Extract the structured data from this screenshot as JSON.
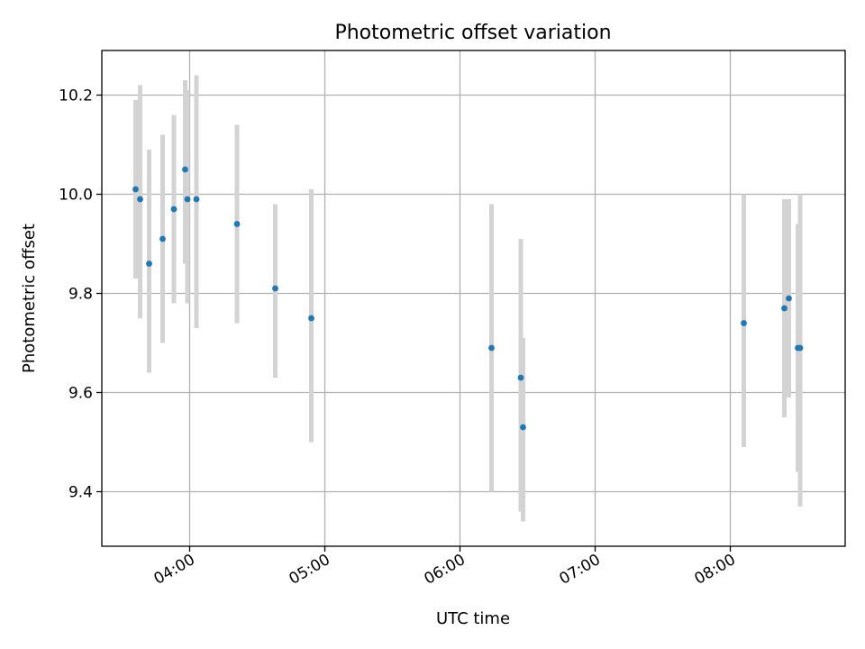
{
  "chart_data": {
    "type": "scatter",
    "title": "Photometric offset variation",
    "xlabel": "UTC time",
    "ylabel": "Photometric offset",
    "x_unit": "UTC time (hh:mm)",
    "xlim": [
      "03:21",
      "08:51"
    ],
    "ylim": [
      9.29,
      10.29
    ],
    "grid": true,
    "x_ticks": [
      "04:00",
      "05:00",
      "06:00",
      "07:00",
      "08:00"
    ],
    "y_ticks": [
      "9.4",
      "9.6",
      "9.8",
      "10.0",
      "10.2"
    ],
    "marker_color": "#1f77b4",
    "errorbar_color": "#d3d3d3",
    "series": [
      {
        "points": [
          {
            "x": "03:36",
            "y": 10.01,
            "ylow": 9.83,
            "yhigh": 10.19
          },
          {
            "x": "03:38",
            "y": 9.99,
            "ylow": 9.75,
            "yhigh": 10.22
          },
          {
            "x": "03:42",
            "y": 9.86,
            "ylow": 9.64,
            "yhigh": 10.09
          },
          {
            "x": "03:48",
            "y": 9.91,
            "ylow": 9.7,
            "yhigh": 10.12
          },
          {
            "x": "03:53",
            "y": 9.97,
            "ylow": 9.78,
            "yhigh": 10.16
          },
          {
            "x": "03:58",
            "y": 10.05,
            "ylow": 9.86,
            "yhigh": 10.23
          },
          {
            "x": "03:59",
            "y": 9.99,
            "ylow": 9.78,
            "yhigh": 10.21
          },
          {
            "x": "04:03",
            "y": 9.99,
            "ylow": 9.73,
            "yhigh": 10.24
          },
          {
            "x": "04:21",
            "y": 9.94,
            "ylow": 9.74,
            "yhigh": 10.14
          },
          {
            "x": "04:38",
            "y": 9.81,
            "ylow": 9.63,
            "yhigh": 9.98
          },
          {
            "x": "04:54",
            "y": 9.75,
            "ylow": 9.5,
            "yhigh": 10.01
          },
          {
            "x": "06:14",
            "y": 9.69,
            "ylow": 9.4,
            "yhigh": 9.98
          },
          {
            "x": "06:27",
            "y": 9.63,
            "ylow": 9.36,
            "yhigh": 9.91
          },
          {
            "x": "06:28",
            "y": 9.53,
            "ylow": 9.34,
            "yhigh": 9.71
          },
          {
            "x": "08:06",
            "y": 9.74,
            "ylow": 9.49,
            "yhigh": 10.0
          },
          {
            "x": "08:24",
            "y": 9.77,
            "ylow": 9.55,
            "yhigh": 9.99
          },
          {
            "x": "08:26",
            "y": 9.79,
            "ylow": 9.59,
            "yhigh": 9.99
          },
          {
            "x": "08:30",
            "y": 9.69,
            "ylow": 9.44,
            "yhigh": 9.94
          },
          {
            "x": "08:31",
            "y": 9.69,
            "ylow": 9.37,
            "yhigh": 10.0
          }
        ]
      }
    ]
  }
}
